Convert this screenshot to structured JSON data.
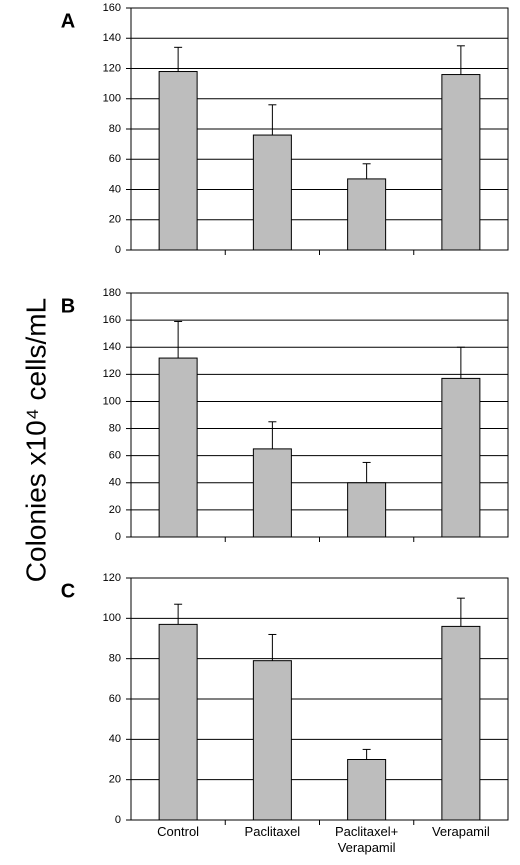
{
  "chart_data": [
    {
      "type": "bar",
      "label": "A",
      "ylabel": "Colonies x10⁴ cells/mL",
      "categories": [
        null,
        null,
        null,
        null
      ],
      "values": [
        118,
        76,
        47,
        116
      ],
      "errors": [
        16,
        20,
        10,
        19
      ],
      "color": "#bdbdbd",
      "ylim": [
        0,
        160
      ],
      "yticks": [
        0,
        20,
        40,
        60,
        80,
        100,
        120,
        140,
        160
      ],
      "grid": true
    },
    {
      "type": "bar",
      "label": "B",
      "categories": [
        null,
        null,
        null,
        null
      ],
      "values": [
        132,
        65,
        40,
        117
      ],
      "errors": [
        27,
        20,
        15,
        23
      ],
      "color": "#bdbdbd",
      "ylim": [
        0,
        180
      ],
      "yticks": [
        0,
        20,
        40,
        60,
        80,
        100,
        120,
        140,
        160,
        180
      ],
      "grid": true
    },
    {
      "type": "bar",
      "label": "C",
      "categories": [
        "Control",
        "Paclitaxel",
        "Paclitaxel+ Verapamil",
        "Verapamil"
      ],
      "values": [
        97,
        79,
        30,
        96
      ],
      "errors": [
        10,
        13,
        5,
        14
      ],
      "color": "#bdbdbd",
      "ylim": [
        0,
        120
      ],
      "yticks": [
        0,
        20,
        40,
        60,
        80,
        100,
        120
      ],
      "grid": true
    }
  ]
}
